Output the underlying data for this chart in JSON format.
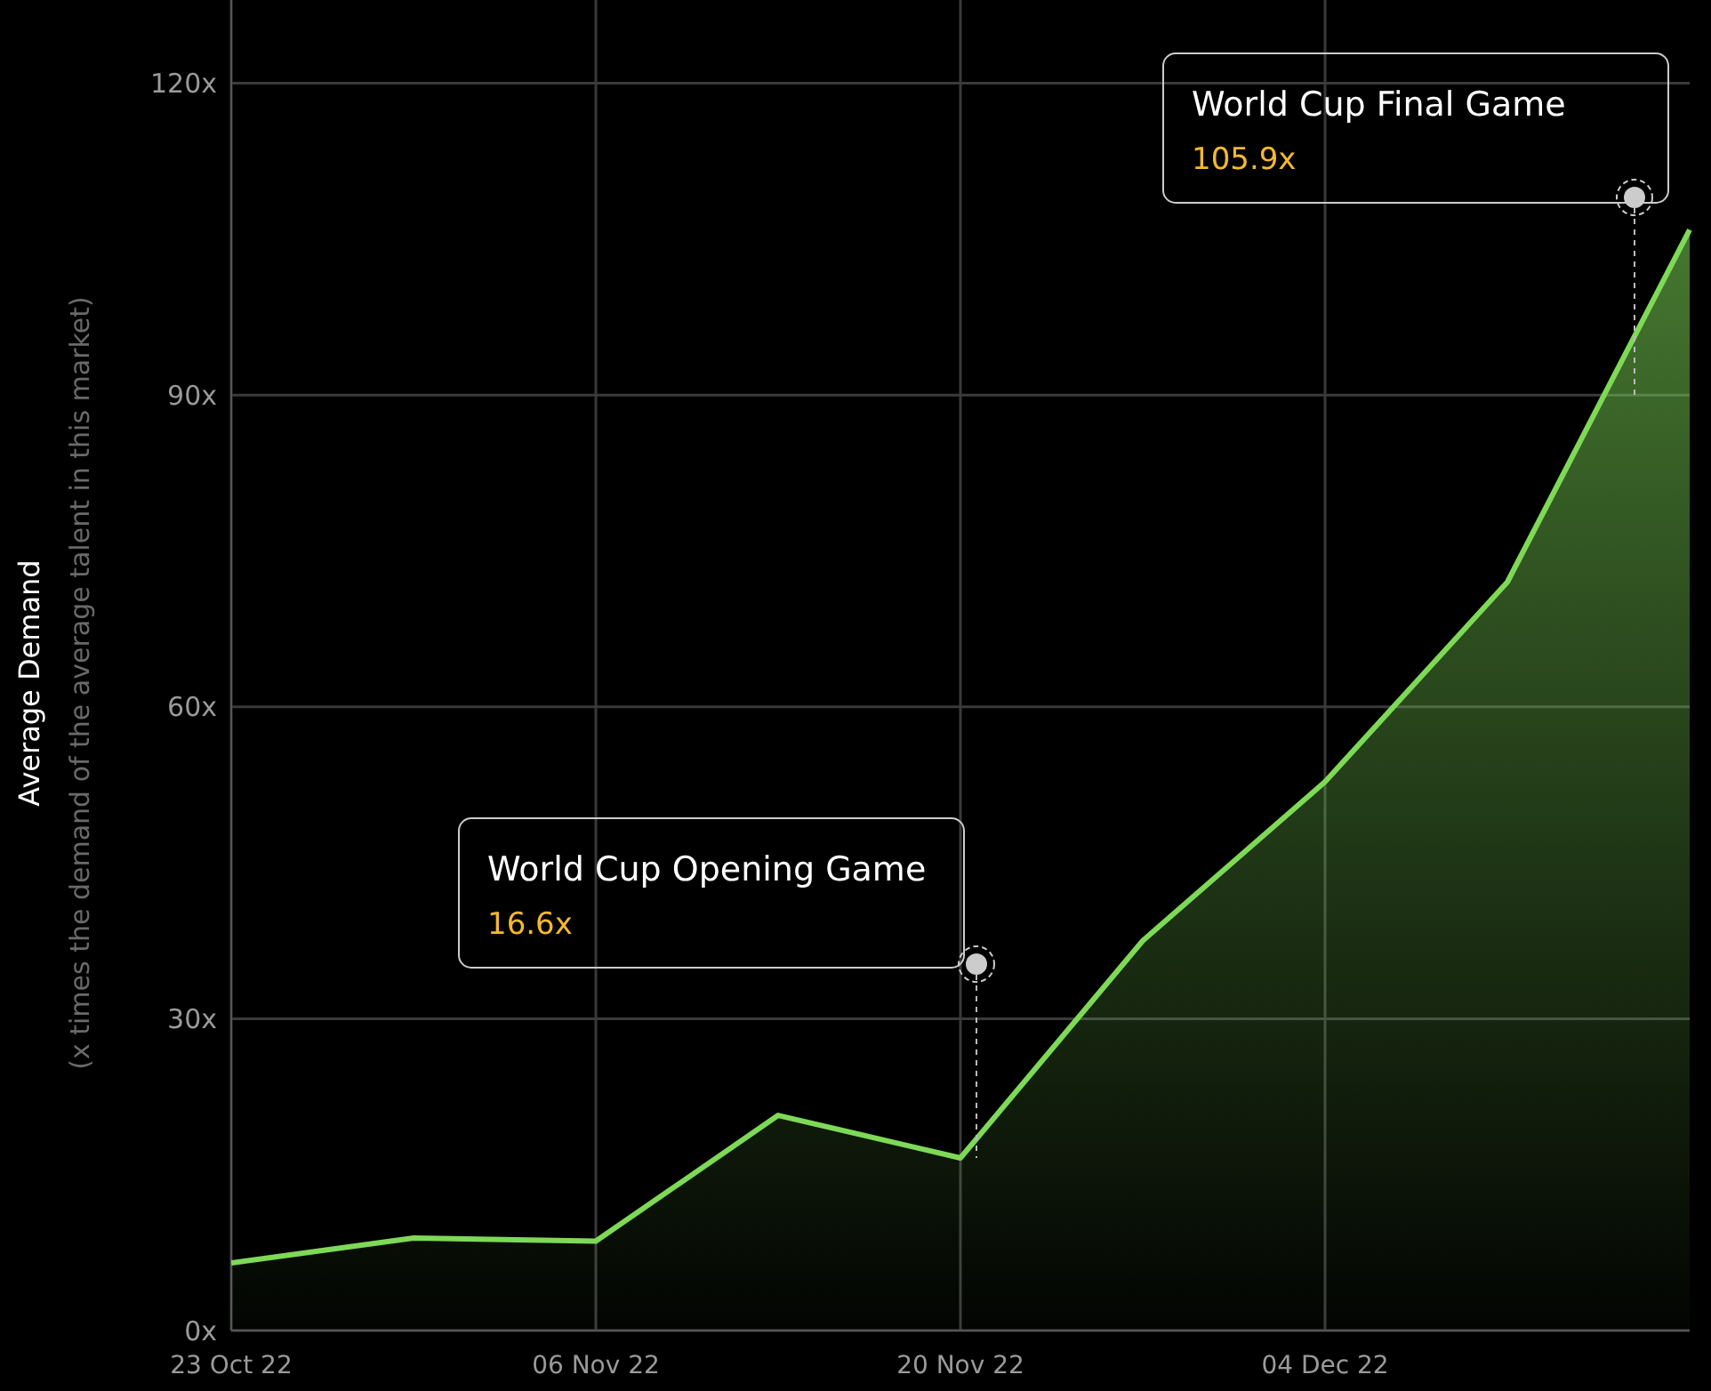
{
  "chart_data": {
    "type": "area",
    "ylabel": "Average Demand",
    "x": [
      "2022-10-23",
      "2022-10-30",
      "2022-11-06",
      "2022-11-13",
      "2022-11-20",
      "2022-11-27",
      "2022-12-04",
      "2022-12-11",
      "2022-12-18"
    ],
    "series": [
      {
        "color": "#7ed957",
        "values": [
          6.5,
          8.9,
          8.6,
          20.7,
          16.6,
          37.5,
          52.8,
          72,
          105.9
        ]
      }
    ],
    "xlim": [
      "2022-10-23",
      "2022-12-18"
    ],
    "xticks": [
      {
        "value": "2022-10-23",
        "label": "23 Oct 22"
      },
      {
        "value": "2022-11-06",
        "label": "06 Nov 22"
      },
      {
        "value": "2022-11-20",
        "label": "20 Nov 22"
      },
      {
        "value": "2022-12-04",
        "label": "04 Dec 22"
      }
    ],
    "ylim": [
      0,
      128
    ],
    "yticks": [
      {
        "value": 0,
        "label": "0x"
      },
      {
        "value": 30,
        "label": "30x"
      },
      {
        "value": 60,
        "label": "60x"
      },
      {
        "value": 90,
        "label": "90x"
      },
      {
        "value": 120,
        "label": "120x"
      }
    ],
    "grid": true,
    "annotations": [
      "(x times the demand of the average talent in this market)",
      "World Cup Opening Game",
      "16.6x",
      "World Cup Final Game",
      "105.9x"
    ]
  }
}
